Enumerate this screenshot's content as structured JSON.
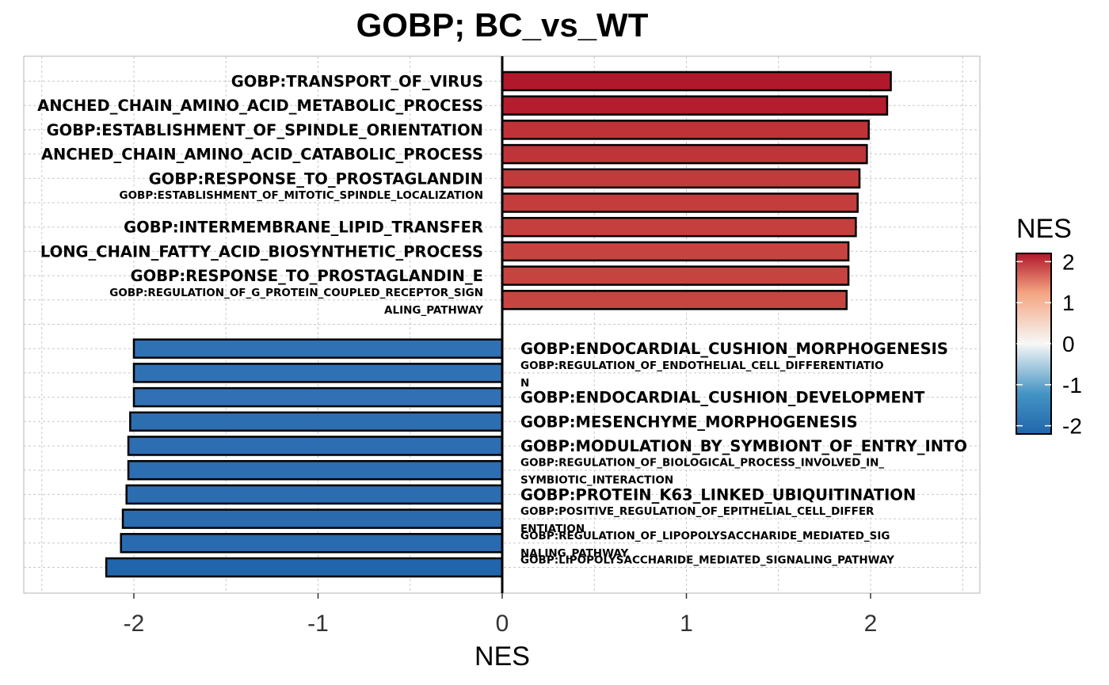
{
  "chart_data": {
    "type": "bar",
    "orientation": "horizontal",
    "title": "GOBP; BC_vs_WT",
    "xlabel": "NES",
    "ylabel": "",
    "xlim": [
      -2.6,
      2.6
    ],
    "xticks": [
      -2,
      -1,
      0,
      1,
      2
    ],
    "xtick_labels": [
      "-2",
      "-1",
      "0",
      "1",
      "2"
    ],
    "grid": true,
    "color_scale": {
      "title": "NES",
      "low": "#2166ac",
      "mid": "#f7f7f7",
      "high": "#b2182b",
      "ticks": [
        "2",
        "1",
        "0",
        "-1",
        "-2"
      ]
    },
    "bars": [
      {
        "label": "GOBP:TRANSPORT_OF_VIRUS",
        "lines": [
          "GOBP:TRANSPORT_OF_VIRUS"
        ],
        "value": 2.11,
        "color": "#b2182b"
      },
      {
        "label": "ANCHED_CHAIN_AMINO_ACID_METABOLIC_PROCESS",
        "lines": [
          "ANCHED_CHAIN_AMINO_ACID_METABOLIC_PROCESS"
        ],
        "value": 2.09,
        "color": "#b41d2d"
      },
      {
        "label": "GOBP:ESTABLISHMENT_OF_SPINDLE_ORIENTATION",
        "lines": [
          "GOBP:ESTABLISHMENT_OF_SPINDLE_ORIENTATION"
        ],
        "value": 1.99,
        "color": "#bf3338"
      },
      {
        "label": "ANCHED_CHAIN_AMINO_ACID_CATABOLIC_PROCESS",
        "lines": [
          "ANCHED_CHAIN_AMINO_ACID_CATABOLIC_PROCESS"
        ],
        "value": 1.98,
        "color": "#bf3439"
      },
      {
        "label": "GOBP:RESPONSE_TO_PROSTAGLANDIN",
        "lines": [
          "GOBP:RESPONSE_TO_PROSTAGLANDIN"
        ],
        "value": 1.94,
        "color": "#c23b3c"
      },
      {
        "label": "GOBP:ESTABLISHMENT_OF_MITOTIC_SPINDLE_LOCALIZATION",
        "lines": [
          "GOBP:ESTABLISHMENT_OF_MITOTIC_SPINDLE_LOCALIZATION"
        ],
        "value": 1.93,
        "color": "#c33d3d"
      },
      {
        "label": "GOBP:INTERMEMBRANE_LIPID_TRANSFER",
        "lines": [
          "GOBP:INTERMEMBRANE_LIPID_TRANSFER"
        ],
        "value": 1.92,
        "color": "#c43f3e"
      },
      {
        "label": "LONG_CHAIN_FATTY_ACID_BIOSYNTHETIC_PROCESS",
        "lines": [
          "LONG_CHAIN_FATTY_ACID_BIOSYNTHETIC_PROCESS"
        ],
        "value": 1.88,
        "color": "#c64440"
      },
      {
        "label": "GOBP:RESPONSE_TO_PROSTAGLANDIN_E",
        "lines": [
          "GOBP:RESPONSE_TO_PROSTAGLANDIN_E"
        ],
        "value": 1.88,
        "color": "#c64440"
      },
      {
        "label": "GOBP:REGULATION_OF_G_PROTEIN_COUPLED_RECEPTOR_SIGNALING_PATHWAY",
        "lines": [
          "GOBP:REGULATION_OF_G_PROTEIN_COUPLED_RECEPTOR_SIGN",
          "ALING_PATHWAY"
        ],
        "value": 1.87,
        "color": "#c64541"
      },
      {
        "label": "GOBP:ENDOCARDIAL_CUSHION_MORPHOGENESIS",
        "lines": [
          "GOBP:ENDOCARDIAL_CUSHION_MORPHOGENESIS"
        ],
        "value": -2.0,
        "color": "#3071b3"
      },
      {
        "label": "GOBP:REGULATION_OF_ENDOTHELIAL_CELL_DIFFERENTIATION",
        "lines": [
          "GOBP:REGULATION_OF_ENDOTHELIAL_CELL_DIFFERENTIATIO",
          "N"
        ],
        "value": -2.0,
        "color": "#3071b3"
      },
      {
        "label": "GOBP:ENDOCARDIAL_CUSHION_DEVELOPMENT",
        "lines": [
          "GOBP:ENDOCARDIAL_CUSHION_DEVELOPMENT"
        ],
        "value": -2.0,
        "color": "#3070b3"
      },
      {
        "label": "GOBP:MESENCHYME_MORPHOGENESIS",
        "lines": [
          "GOBP:MESENCHYME_MORPHOGENESIS"
        ],
        "value": -2.02,
        "color": "#2d6eb1"
      },
      {
        "label": "GOBP:MODULATION_BY_SYMBIONT_OF_ENTRY_INTO",
        "lines": [
          "GOBP:MODULATION_BY_SYMBIONT_OF_ENTRY_INTO"
        ],
        "value": -2.03,
        "color": "#2d6db1"
      },
      {
        "label": "GOBP:REGULATION_OF_BIOLOGICAL_PROCESS_INVOLVED_IN_SYMBIOTIC_INTERACTION",
        "lines": [
          "GOBP:REGULATION_OF_BIOLOGICAL_PROCESS_INVOLVED_IN_",
          "SYMBIOTIC_INTERACTION"
        ],
        "value": -2.03,
        "color": "#2d6db1"
      },
      {
        "label": "GOBP:PROTEIN_K63_LINKED_UBIQUITINATION",
        "lines": [
          "GOBP:PROTEIN_K63_LINKED_UBIQUITINATION"
        ],
        "value": -2.04,
        "color": "#2c6cb0"
      },
      {
        "label": "GOBP:POSITIVE_REGULATION_OF_EPITHELIAL_CELL_DIFFERENTIATION",
        "lines": [
          "GOBP:POSITIVE_REGULATION_OF_EPITHELIAL_CELL_DIFFER",
          "ENTIATION"
        ],
        "value": -2.06,
        "color": "#2a6baf"
      },
      {
        "label": "GOBP:REGULATION_OF_LIPOPOLYSACCHARIDE_MEDIATED_SIGNALING_PATHWAY",
        "lines": [
          "GOBP:REGULATION_OF_LIPOPOLYSACCHARIDE_MEDIATED_SIG",
          "NALING_PATHWAY"
        ],
        "value": -2.07,
        "color": "#2a6aaf"
      },
      {
        "label": "GOBP:LIPOPOLYSACCHARIDE_MEDIATED_SIGNALING_PATHWAY",
        "lines": [
          "GOBP:LIPOPOLYSACCHARIDE_MEDIATED_SIGNALING_PATHWAY"
        ],
        "value": -2.15,
        "color": "#2166ac"
      }
    ]
  }
}
